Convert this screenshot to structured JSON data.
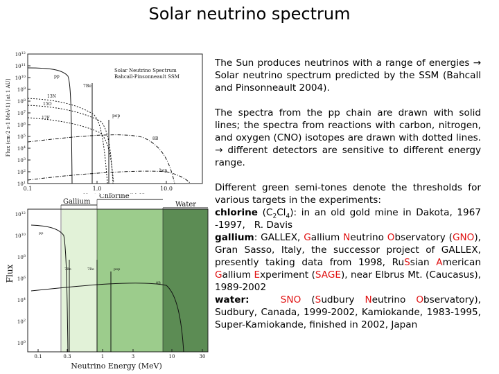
{
  "title": "Solar neutrino spectrum",
  "figure1": {
    "yticks": [
      {
        "base": "10",
        "exp": "12"
      },
      {
        "base": "10",
        "exp": "11"
      },
      {
        "base": "10",
        "exp": "10"
      },
      {
        "base": "10",
        "exp": "9"
      },
      {
        "base": "10",
        "exp": "8"
      },
      {
        "base": "10",
        "exp": "7"
      },
      {
        "base": "10",
        "exp": "6"
      },
      {
        "base": "10",
        "exp": "5"
      },
      {
        "base": "10",
        "exp": "4"
      },
      {
        "base": "10",
        "exp": "3"
      },
      {
        "base": "10",
        "exp": "2"
      },
      {
        "base": "10",
        "exp": "1"
      }
    ],
    "xticks": [
      "0.1",
      "1.0",
      "10.0"
    ],
    "xlabel": "Neutrino Energy (MeV)",
    "ylabel": "Flux (cm-2 s-1 MeV-1) [at 1 AU]",
    "legend": [
      "Solar Neutrino Spectrum",
      "Bahcall-Pinsonneault SSM"
    ],
    "curve_labels": [
      "pp",
      "7Be",
      "13N",
      "15O",
      "17F",
      "pep",
      "8B",
      "hep"
    ]
  },
  "figure2": {
    "bands": [
      "Gallium",
      "Chlorine",
      "Water"
    ],
    "yticks": [
      {
        "base": "10",
        "exp": "12"
      },
      {
        "base": "10",
        "exp": "10"
      },
      {
        "base": "10",
        "exp": "8"
      },
      {
        "base": "10",
        "exp": "6"
      },
      {
        "base": "10",
        "exp": "4"
      },
      {
        "base": "10",
        "exp": "2"
      },
      {
        "base": "10",
        "exp": "0"
      }
    ],
    "xticks": [
      "0.1",
      "0.3",
      "1",
      "3",
      "10",
      "30"
    ],
    "xlabel": "Neutrino Energy (MeV)",
    "ylabel": "Flux",
    "curve_labels": [
      "pp",
      "7Be",
      "7Be",
      "pep",
      "8B"
    ]
  },
  "paragraphs": [
    [
      [
        {
          "text": "The Sun produces neutrinos with a range of energies → Solar neutrino spectrum predicted by the SSM (Bahcall and Pinsonneault 2004).",
          "style": "plain"
        }
      ]
    ],
    [
      [
        {
          "text": "The spectra from the pp chain are drawn with solid lines; the spectra from reactions with carbon, nitrogen, and oxygen (CNO) isotopes are drawn with dotted lines. → different detectors are sensitive to different energy range.",
          "style": "plain"
        }
      ]
    ],
    [
      [
        {
          "text": "Different green semi-tones denote the thresholds for various targets in the experiments:",
          "style": "plain"
        }
      ],
      [
        {
          "text": "chlorine",
          "style": "bold"
        },
        {
          "text": " (C",
          "style": "plain"
        },
        {
          "text": "2",
          "style": "sub"
        },
        {
          "text": "Cl",
          "style": "plain"
        },
        {
          "text": "4",
          "style": "sub"
        },
        {
          "text": "): in an old gold mine in Dakota, 1967 -1997,   R. Davis",
          "style": "plain"
        }
      ],
      [
        {
          "text": "gallium",
          "style": "bold"
        },
        {
          "text": ": GALLEX, ",
          "style": "plain"
        },
        {
          "text": "G",
          "style": "red"
        },
        {
          "text": "allium ",
          "style": "plain"
        },
        {
          "text": "N",
          "style": "red"
        },
        {
          "text": "eutrino ",
          "style": "plain"
        },
        {
          "text": "O",
          "style": "red"
        },
        {
          "text": "bservatory (",
          "style": "plain"
        },
        {
          "text": "GNO",
          "style": "red"
        },
        {
          "text": "), Gran Sasso, Italy, the successor project of GALLEX, presently taking data from 1998, Ru",
          "style": "plain"
        },
        {
          "text": "S",
          "style": "red"
        },
        {
          "text": "sian ",
          "style": "plain"
        },
        {
          "text": "A",
          "style": "red"
        },
        {
          "text": "merican ",
          "style": "plain"
        },
        {
          "text": "G",
          "style": "red"
        },
        {
          "text": "allium ",
          "style": "plain"
        },
        {
          "text": "E",
          "style": "red"
        },
        {
          "text": "xperiment (",
          "style": "plain"
        },
        {
          "text": "SAGE",
          "style": "red"
        },
        {
          "text": "), near Elbrus Mt. (Caucasus), 1989-2002",
          "style": "plain"
        }
      ],
      [
        {
          "text": "water:",
          "style": "bold"
        },
        {
          "text": "   ",
          "style": "plain"
        },
        {
          "text": "SNO",
          "style": "red"
        },
        {
          "text": " (",
          "style": "plain"
        },
        {
          "text": "S",
          "style": "red"
        },
        {
          "text": "udbury ",
          "style": "plain"
        },
        {
          "text": "N",
          "style": "red"
        },
        {
          "text": "eutrino ",
          "style": "plain"
        },
        {
          "text": "O",
          "style": "red"
        },
        {
          "text": "bservatory), Sudbury, Canada, 1999-2002, Kamiokande, 1983-1995, Super-Kamiokande, finished in 2002, Japan",
          "style": "plain"
        }
      ]
    ]
  ]
}
